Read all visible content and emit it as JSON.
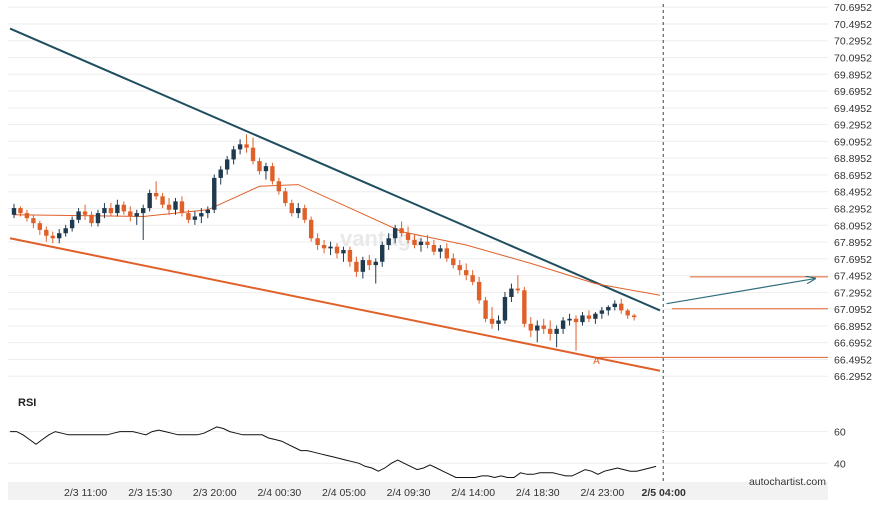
{
  "brand": "autochartist.com",
  "watermark": "vantage",
  "rsi_label": "RSI",
  "point_label": "A",
  "colors": {
    "bull": "#1f3a4f",
    "bear": "#e0602a",
    "resistance": "#1f4e5f",
    "support": "#e0602a",
    "ma": "#e0602a",
    "forecast": "#2f6e7c",
    "vline": "#1f4e5f",
    "grid": "#eeeeee"
  },
  "chart_data": [
    {
      "type": "candlestick",
      "title": "",
      "y_ticks": [
        "70.6952",
        "70.4952",
        "70.2952",
        "70.0952",
        "69.8952",
        "69.6952",
        "69.4952",
        "69.2952",
        "69.0952",
        "68.8952",
        "68.6952",
        "68.4952",
        "68.2952",
        "68.0952",
        "67.8952",
        "67.6952",
        "67.4952",
        "67.2952",
        "67.0952",
        "66.8952",
        "66.6952",
        "66.4952",
        "66.2952"
      ],
      "ylim": [
        66.0952,
        70.7212
      ],
      "x_ticks": [
        "2/3 11:00",
        "2/3 15:30",
        "2/3 20:00",
        "2/4 00:30",
        "2/4 05:00",
        "2/4 09:30",
        "2/4 14:00",
        "2/4 18:30",
        "2/4 23:00",
        "2/5 04:00"
      ],
      "x_tick_index": [
        11,
        21,
        31,
        41,
        51,
        61,
        71,
        81,
        91,
        100.5
      ],
      "current_index": 100.5,
      "candles": [
        [
          68.22,
          68.35,
          68.18,
          68.3
        ],
        [
          68.3,
          68.32,
          68.2,
          68.24
        ],
        [
          68.24,
          68.28,
          68.14,
          68.18
        ],
        [
          68.18,
          68.22,
          68.06,
          68.12
        ],
        [
          68.12,
          68.15,
          67.98,
          68.04
        ],
        [
          68.04,
          68.08,
          67.9,
          67.97
        ],
        [
          67.97,
          68.02,
          67.88,
          67.94
        ],
        [
          67.94,
          68.05,
          67.88,
          68.0
        ],
        [
          68.0,
          68.1,
          67.96,
          68.06
        ],
        [
          68.06,
          68.2,
          68.02,
          68.16
        ],
        [
          68.16,
          68.3,
          68.12,
          68.26
        ],
        [
          68.26,
          68.34,
          68.16,
          68.22
        ],
        [
          68.22,
          68.26,
          68.08,
          68.12
        ],
        [
          68.12,
          68.28,
          68.08,
          68.24
        ],
        [
          68.24,
          68.36,
          68.18,
          68.3
        ],
        [
          68.3,
          68.36,
          68.2,
          68.24
        ],
        [
          68.24,
          68.4,
          68.2,
          68.34
        ],
        [
          68.34,
          68.38,
          68.22,
          68.26
        ],
        [
          68.26,
          68.32,
          68.14,
          68.2
        ],
        [
          68.2,
          68.28,
          68.1,
          68.24
        ],
        [
          68.24,
          68.34,
          67.92,
          68.3
        ],
        [
          68.3,
          68.52,
          68.26,
          68.48
        ],
        [
          68.48,
          68.62,
          68.4,
          68.44
        ],
        [
          68.44,
          68.48,
          68.3,
          68.34
        ],
        [
          68.34,
          68.42,
          68.22,
          68.28
        ],
        [
          68.28,
          68.42,
          68.22,
          68.38
        ],
        [
          68.38,
          68.44,
          68.2,
          68.24
        ],
        [
          68.24,
          68.28,
          68.12,
          68.16
        ],
        [
          68.16,
          68.26,
          68.1,
          68.2
        ],
        [
          68.2,
          68.3,
          68.12,
          68.24
        ],
        [
          68.24,
          68.32,
          68.18,
          68.28
        ],
        [
          68.28,
          68.7,
          68.24,
          68.66
        ],
        [
          68.66,
          68.8,
          68.58,
          68.76
        ],
        [
          68.76,
          68.92,
          68.7,
          68.88
        ],
        [
          68.88,
          69.04,
          68.82,
          69.0
        ],
        [
          69.0,
          69.12,
          68.94,
          69.06
        ],
        [
          69.06,
          69.18,
          68.96,
          69.02
        ],
        [
          69.02,
          69.14,
          68.82,
          68.86
        ],
        [
          68.86,
          68.9,
          68.7,
          68.74
        ],
        [
          68.74,
          68.84,
          68.64,
          68.8
        ],
        [
          68.8,
          68.84,
          68.58,
          68.62
        ],
        [
          68.62,
          68.66,
          68.46,
          68.5
        ],
        [
          68.5,
          68.54,
          68.32,
          68.36
        ],
        [
          68.36,
          68.4,
          68.2,
          68.24
        ],
        [
          68.24,
          68.36,
          68.18,
          68.3
        ],
        [
          68.3,
          68.34,
          68.12,
          68.16
        ],
        [
          68.16,
          68.2,
          67.9,
          67.94
        ],
        [
          67.94,
          68.0,
          67.8,
          67.86
        ],
        [
          67.86,
          67.92,
          67.76,
          67.82
        ],
        [
          67.82,
          67.9,
          67.74,
          67.84
        ],
        [
          67.84,
          67.88,
          67.7,
          67.76
        ],
        [
          67.76,
          67.84,
          67.66,
          67.8
        ],
        [
          67.8,
          67.84,
          67.6,
          67.66
        ],
        [
          67.66,
          67.72,
          67.48,
          67.54
        ],
        [
          67.54,
          67.72,
          67.46,
          67.68
        ],
        [
          67.68,
          67.74,
          67.56,
          67.62
        ],
        [
          67.62,
          67.7,
          67.4,
          67.66
        ],
        [
          67.66,
          67.9,
          67.6,
          67.86
        ],
        [
          67.86,
          68.0,
          67.8,
          67.94
        ],
        [
          67.94,
          68.1,
          67.88,
          68.06
        ],
        [
          68.06,
          68.14,
          67.96,
          68.0
        ],
        [
          68.0,
          68.08,
          67.88,
          67.92
        ],
        [
          67.92,
          67.98,
          67.82,
          67.86
        ],
        [
          67.86,
          67.94,
          67.78,
          67.9
        ],
        [
          67.9,
          67.98,
          67.82,
          67.86
        ],
        [
          67.86,
          67.92,
          67.74,
          67.78
        ],
        [
          67.78,
          67.86,
          67.7,
          67.82
        ],
        [
          67.82,
          67.88,
          67.66,
          67.7
        ],
        [
          67.7,
          67.76,
          67.58,
          67.62
        ],
        [
          67.62,
          67.68,
          67.5,
          67.56
        ],
        [
          67.56,
          67.64,
          67.44,
          67.5
        ],
        [
          67.5,
          67.56,
          67.38,
          67.42
        ],
        [
          67.42,
          67.48,
          67.16,
          67.2
        ],
        [
          67.2,
          67.24,
          66.94,
          66.98
        ],
        [
          66.98,
          67.12,
          66.86,
          66.92
        ],
        [
          66.92,
          67.02,
          66.84,
          66.96
        ],
        [
          66.96,
          67.3,
          66.92,
          67.24
        ],
        [
          67.24,
          67.4,
          67.18,
          67.34
        ],
        [
          67.34,
          67.5,
          67.28,
          67.32
        ],
        [
          67.32,
          67.36,
          66.88,
          66.92
        ],
        [
          66.92,
          67.0,
          66.76,
          66.84
        ],
        [
          66.84,
          66.96,
          66.7,
          66.9
        ],
        [
          66.9,
          66.98,
          66.8,
          66.86
        ],
        [
          66.86,
          66.96,
          66.72,
          66.8
        ],
        [
          66.8,
          66.9,
          66.64,
          66.86
        ],
        [
          66.86,
          67.0,
          66.8,
          66.96
        ],
        [
          66.96,
          67.04,
          66.9,
          66.98
        ],
        [
          66.98,
          67.02,
          66.6,
          66.94
        ],
        [
          66.94,
          67.06,
          66.9,
          67.02
        ],
        [
          67.02,
          67.08,
          66.94,
          66.98
        ],
        [
          66.98,
          67.06,
          66.92,
          67.04
        ],
        [
          67.04,
          67.12,
          66.98,
          67.08
        ],
        [
          67.08,
          67.14,
          67.02,
          67.12
        ],
        [
          67.12,
          67.2,
          67.08,
          67.16
        ],
        [
          67.16,
          67.22,
          67.04,
          67.08
        ],
        [
          67.08,
          67.1,
          66.98,
          67.02
        ],
        [
          67.02,
          67.04,
          66.96,
          67.0
        ]
      ],
      "moving_average": [
        [
          0,
          68.22
        ],
        [
          20,
          68.2
        ],
        [
          30,
          68.28
        ],
        [
          38,
          68.56
        ],
        [
          44,
          68.58
        ],
        [
          52,
          68.3
        ],
        [
          60,
          68.02
        ],
        [
          70,
          67.86
        ],
        [
          80,
          67.64
        ],
        [
          90,
          67.4
        ],
        [
          100,
          67.26
        ]
      ],
      "resistance_line": [
        [
          0,
          70.44
        ],
        [
          100,
          67.08
        ]
      ],
      "support_line": [
        [
          0,
          67.94
        ],
        [
          100,
          66.36
        ]
      ],
      "level_lines": [
        67.48,
        67.1,
        66.52
      ],
      "forecast_arrow": [
        [
          101,
          67.16
        ],
        [
          124,
          67.46
        ]
      ],
      "point_A": [
        90,
        66.56
      ]
    },
    {
      "type": "line",
      "title": "RSI",
      "y_ticks": [
        "60",
        "40"
      ],
      "ylim": [
        25,
        80
      ],
      "values": [
        60,
        60,
        58,
        55,
        52,
        55,
        58,
        60,
        59,
        58,
        58,
        58,
        58,
        58,
        58,
        58,
        59,
        60,
        60,
        60,
        59,
        58,
        60,
        61,
        60,
        59,
        58,
        58,
        58,
        58,
        59,
        61,
        63,
        62,
        60,
        59,
        58,
        58,
        58,
        58,
        56,
        55,
        54,
        52,
        50,
        48,
        48,
        47,
        46,
        45,
        44,
        43,
        42,
        41,
        40,
        38,
        37,
        35,
        37,
        40,
        42,
        40,
        38,
        36,
        37,
        39,
        37,
        35,
        33,
        31,
        31,
        31,
        31,
        32,
        32,
        31,
        32,
        31,
        31,
        34,
        33,
        33,
        34,
        34,
        34,
        33,
        32,
        32,
        34,
        36,
        35,
        33,
        35,
        36,
        37,
        36,
        35,
        35,
        36,
        37,
        38
      ]
    }
  ]
}
